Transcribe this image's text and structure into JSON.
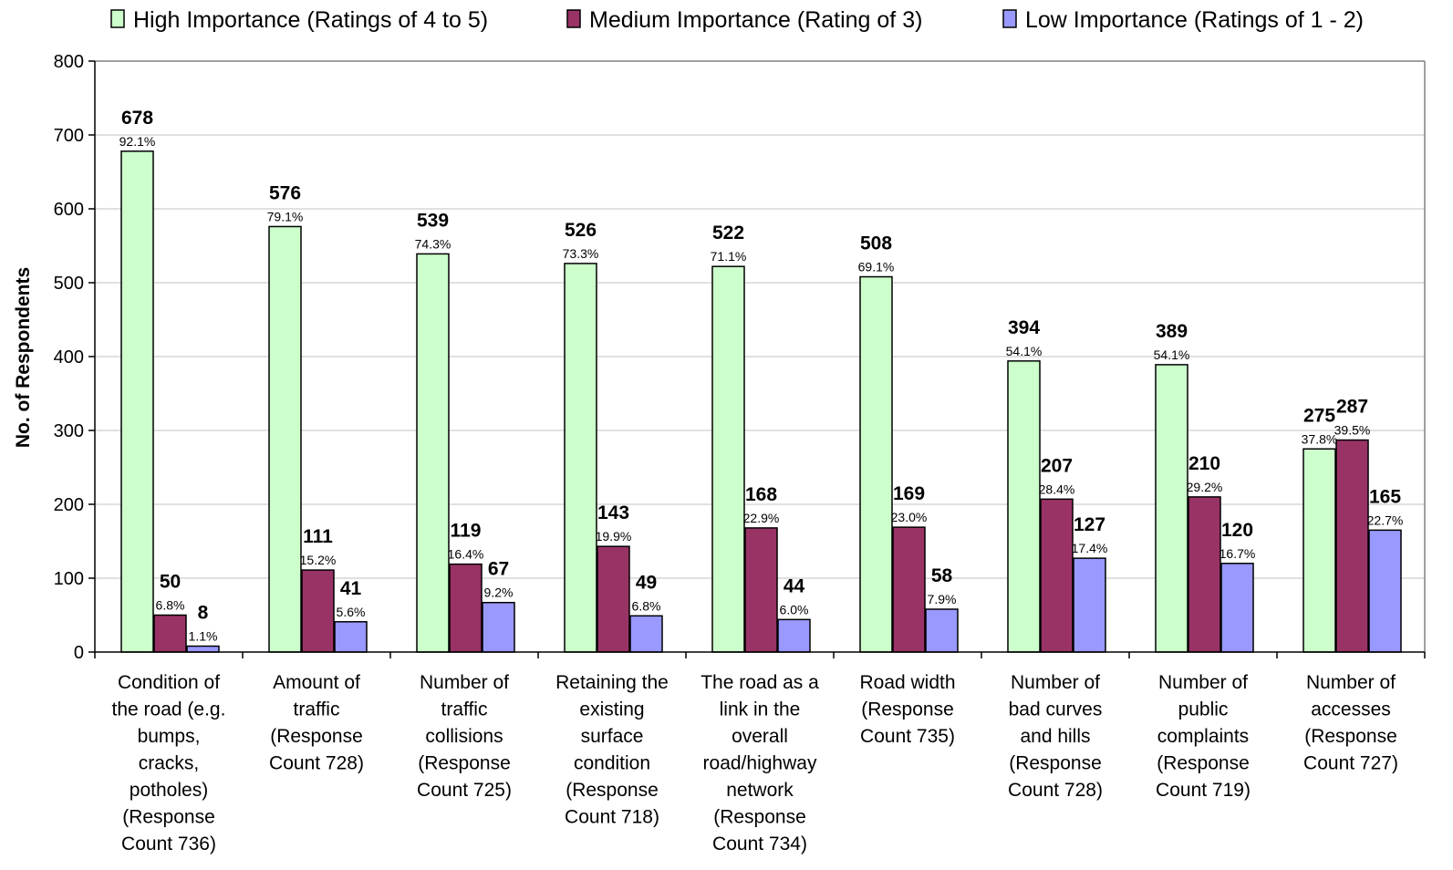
{
  "chart_data": {
    "type": "bar",
    "ylabel": "No. of Respondents",
    "ylim": [
      0,
      800
    ],
    "yticks": [
      "0",
      "100",
      "200",
      "300",
      "400",
      "500",
      "600",
      "700",
      "800"
    ],
    "grid": true,
    "legend_position": "top",
    "categories": [
      "Condition of the road (e.g. bumps, cracks, potholes) (Response Count 736)",
      "Amount of traffic (Response Count 728)",
      "Number of traffic collisions (Response Count 725)",
      "Retaining the existing surface condition (Response Count 718)",
      "The road as a link in the overall road/highway network (Response Count 734)",
      "Road width (Response Count 735)",
      "Number of bad curves and hills (Response Count 728)",
      "Number of public complaints (Response Count 719)",
      "Number of accesses (Response Count 727)"
    ],
    "category_lines": [
      [
        "Condition of",
        "the road (e.g.",
        "bumps,",
        "cracks,",
        "potholes)",
        "(Response",
        "Count 736)"
      ],
      [
        "Amount of",
        "traffic",
        "(Response",
        "Count 728)"
      ],
      [
        "Number of",
        "traffic",
        "collisions",
        "(Response",
        "Count 725)"
      ],
      [
        "Retaining the",
        "existing",
        "surface",
        "condition",
        "(Response",
        "Count 718)"
      ],
      [
        "The road as a",
        "link in the",
        "overall",
        "road/highway",
        "network",
        "(Response",
        "Count 734)"
      ],
      [
        "Road width",
        "(Response",
        "Count 735)"
      ],
      [
        "Number of",
        "bad curves",
        "and hills",
        "(Response",
        "Count 728)"
      ],
      [
        "Number of",
        "public",
        "complaints",
        "(Response",
        "Count 719)"
      ],
      [
        "Number of",
        "accesses",
        "(Response",
        "Count 727)"
      ]
    ],
    "series": [
      {
        "name": "High Importance (Ratings of 4 to 5)",
        "color": "#ccffcc",
        "values": [
          678,
          576,
          539,
          526,
          522,
          508,
          394,
          389,
          275
        ],
        "value_labels": [
          "678",
          "576",
          "539",
          "526",
          "522",
          "508",
          "394",
          "389",
          "275"
        ],
        "percent_labels": [
          "92.1%",
          "79.1%",
          "74.3%",
          "73.3%",
          "71.1%",
          "69.1%",
          "54.1%",
          "54.1%",
          "37.8%"
        ]
      },
      {
        "name": "Medium Importance (Rating of 3)",
        "color": "#993366",
        "values": [
          50,
          111,
          119,
          143,
          168,
          169,
          207,
          210,
          287
        ],
        "value_labels": [
          "50",
          "111",
          "119",
          "143",
          "168",
          "169",
          "207",
          "210",
          "287"
        ],
        "percent_labels": [
          "6.8%",
          "15.2%",
          "16.4%",
          "19.9%",
          "22.9%",
          "23.0%",
          "28.4%",
          "29.2%",
          "39.5%"
        ]
      },
      {
        "name": "Low Importance (Ratings of 1 - 2)",
        "color": "#9999ff",
        "values": [
          8,
          41,
          67,
          49,
          44,
          58,
          127,
          120,
          165
        ],
        "value_labels": [
          "8",
          "41",
          "67",
          "49",
          "44",
          "58",
          "127",
          "120",
          "165"
        ],
        "percent_labels": [
          "1.1%",
          "5.6%",
          "9.2%",
          "6.8%",
          "6.0%",
          "7.9%",
          "17.4%",
          "16.7%",
          "22.7%"
        ]
      }
    ]
  }
}
